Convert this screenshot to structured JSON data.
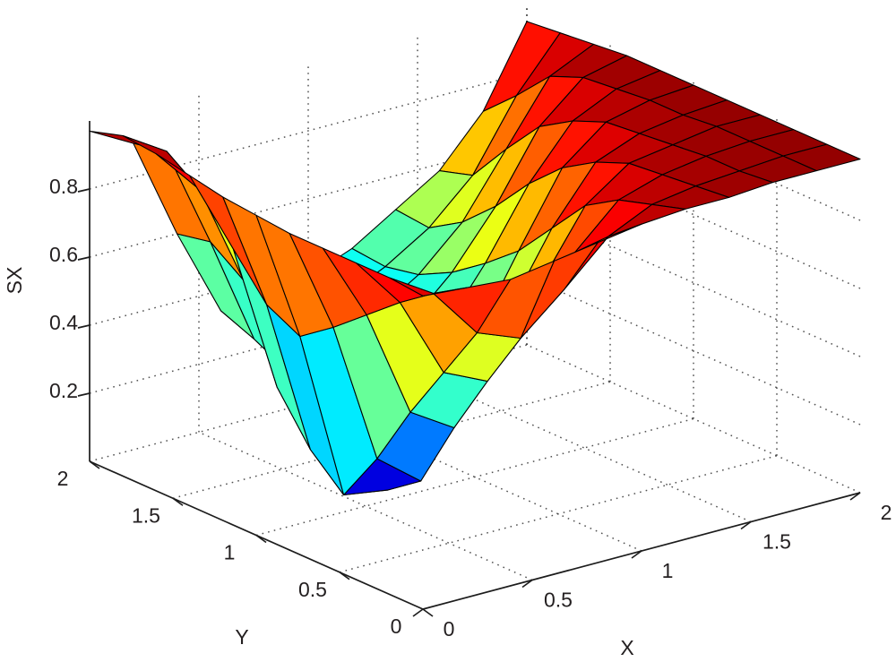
{
  "figure": {
    "background": "#ffffff"
  },
  "axes": {
    "x": {
      "label": "X",
      "tick_labels": [
        "0",
        "0.5",
        "1",
        "1.5",
        "2"
      ],
      "tick_values": [
        0,
        0.5,
        1,
        1.5,
        2
      ],
      "range": [
        0,
        2
      ]
    },
    "y": {
      "label": "Y",
      "tick_labels": [
        "0",
        "0.5",
        "1",
        "1.5",
        "2"
      ],
      "tick_values": [
        0,
        0.5,
        1,
        1.5,
        2
      ],
      "range": [
        0,
        2
      ]
    },
    "z": {
      "label": "SX",
      "tick_labels": [
        "0.2",
        "0.4",
        "0.6",
        "0.8"
      ],
      "tick_values": [
        0.2,
        0.4,
        0.6,
        0.8
      ],
      "range": [
        0,
        1
      ]
    }
  },
  "chart_data": {
    "type": "surface",
    "title": "",
    "xlabel": "X",
    "ylabel": "Y",
    "zlabel": "SX",
    "colormap": "jet",
    "zlim": [
      0,
      1
    ],
    "grid": "dotted",
    "view": {
      "azimuth": -37.5,
      "elevation": 30
    },
    "x": [
      0,
      0.2,
      0.4,
      0.6,
      0.8,
      1.0,
      1.2,
      1.4,
      1.6,
      1.8,
      2.0
    ],
    "y": [
      0,
      0.2,
      0.4,
      0.6,
      0.8,
      1.0,
      1.2,
      1.4,
      1.6,
      1.8,
      2.0
    ],
    "z_matrix": [
      [
        0.92,
        0.91,
        0.9,
        0.92,
        0.94,
        0.96,
        0.97,
        0.97,
        0.98,
        0.98,
        0.98
      ],
      [
        0.93,
        0.85,
        0.7,
        0.65,
        0.76,
        0.88,
        0.94,
        0.96,
        0.97,
        0.98,
        0.98
      ],
      [
        0.93,
        0.78,
        0.54,
        0.48,
        0.62,
        0.79,
        0.91,
        0.95,
        0.97,
        0.98,
        0.98
      ],
      [
        0.93,
        0.7,
        0.38,
        0.3,
        0.46,
        0.66,
        0.85,
        0.94,
        0.96,
        0.98,
        0.98
      ],
      [
        0.93,
        0.62,
        0.2,
        0.1,
        0.31,
        0.53,
        0.74,
        0.9,
        0.95,
        0.97,
        0.98
      ],
      [
        0.94,
        0.55,
        0.05,
        0.03,
        0.19,
        0.41,
        0.63,
        0.84,
        0.94,
        0.97,
        0.98
      ],
      [
        0.95,
        0.6,
        0.14,
        0.1,
        0.24,
        0.38,
        0.55,
        0.75,
        0.9,
        0.96,
        0.98
      ],
      [
        0.97,
        0.72,
        0.28,
        0.18,
        0.28,
        0.36,
        0.48,
        0.64,
        0.84,
        0.95,
        0.98
      ],
      [
        0.99,
        0.85,
        0.55,
        0.25,
        0.3,
        0.35,
        0.43,
        0.55,
        0.73,
        0.91,
        0.97
      ],
      [
        1.0,
        0.92,
        0.62,
        0.3,
        0.32,
        0.35,
        0.41,
        0.49,
        0.61,
        0.81,
        0.96
      ],
      [
        0.97,
        0.9,
        0.6,
        0.34,
        0.34,
        0.37,
        0.42,
        0.5,
        0.58,
        0.72,
        0.95
      ]
    ]
  },
  "colors": {
    "surface_edge": "#000000",
    "axis": "#1c1c1c",
    "grid": "#3f3f3f",
    "text": "#231f20",
    "background": "#ffffff"
  }
}
